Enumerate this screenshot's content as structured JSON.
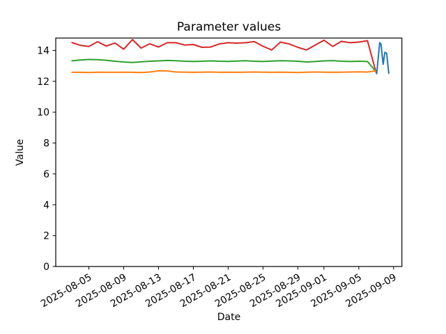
{
  "chart_data": {
    "type": "line",
    "title": "Parameter values",
    "xlabel": "Date",
    "ylabel": "Value",
    "grid": false,
    "legend": "none",
    "background_color": "#ffffff",
    "axis_color": "#000000",
    "x_unit": "days since 2025-08-03",
    "xlim": [
      -1.8,
      37.95
    ],
    "ylim": [
      0,
      14.8
    ],
    "y_ticks": [
      0,
      2,
      4,
      6,
      8,
      10,
      12,
      14
    ],
    "x_ticks": [
      {
        "day": 2,
        "label": "2025-08-05"
      },
      {
        "day": 6,
        "label": "2025-08-09"
      },
      {
        "day": 10,
        "label": "2025-08-13"
      },
      {
        "day": 14,
        "label": "2025-08-17"
      },
      {
        "day": 18,
        "label": "2025-08-21"
      },
      {
        "day": 22,
        "label": "2025-08-25"
      },
      {
        "day": 26,
        "label": "2025-08-29"
      },
      {
        "day": 29,
        "label": "2025-09-01"
      },
      {
        "day": 33,
        "label": "2025-09-05"
      },
      {
        "day": 37,
        "label": "2025-09-09"
      }
    ],
    "daily_x": [
      0,
      1,
      2,
      3,
      4,
      5,
      6,
      7,
      8,
      9,
      10,
      11,
      12,
      13,
      14,
      15,
      16,
      17,
      18,
      19,
      20,
      21,
      22,
      23,
      24,
      25,
      26,
      27,
      28,
      29,
      30,
      31,
      32,
      33,
      34,
      35
    ],
    "daily_dates_range": [
      "2025-08-03",
      "2025-09-07"
    ],
    "series": [
      {
        "id": "red-line",
        "color": "#d62728",
        "x": "daily",
        "values": [
          14.52,
          14.33,
          14.26,
          14.56,
          14.28,
          14.48,
          14.08,
          14.7,
          14.15,
          14.43,
          14.22,
          14.5,
          14.5,
          14.35,
          14.38,
          14.2,
          14.22,
          14.42,
          14.5,
          14.47,
          14.5,
          14.57,
          14.27,
          14.03,
          14.54,
          14.42,
          14.2,
          14.03,
          14.35,
          14.66,
          14.26,
          14.59,
          14.5,
          14.54,
          14.63,
          12.55
        ]
      },
      {
        "id": "green-line",
        "color": "#2ca02c",
        "x": "daily",
        "values": [
          13.32,
          13.38,
          13.41,
          13.4,
          13.36,
          13.3,
          13.25,
          13.22,
          13.26,
          13.3,
          13.32,
          13.35,
          13.33,
          13.3,
          13.28,
          13.3,
          13.32,
          13.3,
          13.29,
          13.31,
          13.33,
          13.3,
          13.28,
          13.31,
          13.33,
          13.32,
          13.3,
          13.25,
          13.28,
          13.32,
          13.34,
          13.3,
          13.28,
          13.3,
          13.28,
          12.62
        ]
      },
      {
        "id": "orange-line",
        "color": "#ff7f0e",
        "x": "daily",
        "values": [
          12.58,
          12.58,
          12.57,
          12.59,
          12.58,
          12.58,
          12.59,
          12.58,
          12.57,
          12.6,
          12.68,
          12.67,
          12.6,
          12.59,
          12.58,
          12.59,
          12.6,
          12.58,
          12.59,
          12.58,
          12.59,
          12.6,
          12.59,
          12.58,
          12.59,
          12.58,
          12.57,
          12.59,
          12.6,
          12.59,
          12.58,
          12.59,
          12.6,
          12.61,
          12.6,
          12.68
        ]
      },
      {
        "id": "blue-line",
        "color": "#1f77b4",
        "x": [
          35.05,
          35.4,
          35.55,
          35.8,
          36.0,
          36.2,
          36.45
        ],
        "values": [
          12.45,
          14.5,
          14.42,
          13.1,
          13.88,
          13.82,
          12.48
        ]
      }
    ]
  }
}
